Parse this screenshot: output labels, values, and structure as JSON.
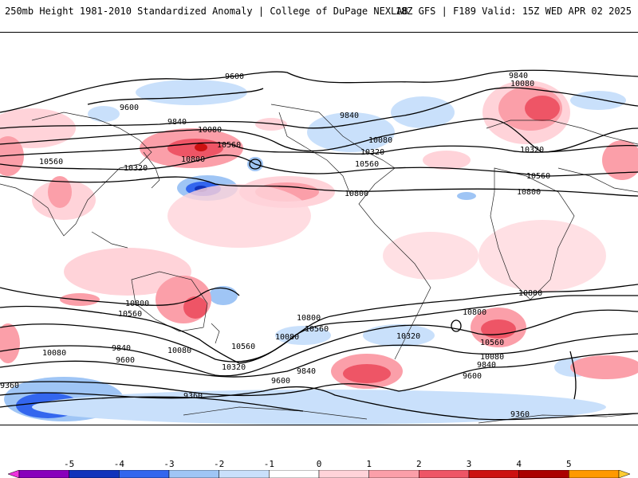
{
  "header": {
    "title": "250mb Height 1981-2010 Standardized Anomaly | College of DuPage NEXLAB",
    "run_info": "18Z GFS | F189 Valid: 15Z WED APR 02 2025"
  },
  "legend": {
    "ticks": [
      "-5",
      "-4",
      "-3",
      "-2",
      "-1",
      "0",
      "1",
      "2",
      "3",
      "4",
      "5"
    ],
    "colors": [
      "#ee33dd",
      "#8800bb",
      "#1133bb",
      "#3366ee",
      "#9fc5f5",
      "#c9e0fb",
      "#ffffff",
      "#ffd3d9",
      "#fb9fa9",
      "#ee5566",
      "#cc1111",
      "#aa0000",
      "#ff9900",
      "#ffcc33"
    ]
  },
  "contour_labels": {
    "c1": "9600",
    "c2": "9600",
    "c3": "9840",
    "c4": "10080",
    "c5": "10560",
    "c6": "10800",
    "c7": "10320",
    "c8": "10560",
    "c9": "9840",
    "c10": "10080",
    "c11": "10320",
    "c12": "10560",
    "c13": "10800",
    "c14": "9840",
    "c15": "10080",
    "c16": "10320",
    "c17": "10560",
    "c18": "10800",
    "c19": "10800",
    "c20": "10560",
    "c21": "10080",
    "c22": "9840",
    "c23": "9600",
    "c24": "10080",
    "c25": "10320",
    "c26": "10800",
    "c27": "10560",
    "c28": "9840",
    "c29": "9600",
    "c30": "10320",
    "c31": "10800",
    "c32": "10800",
    "c33": "10560",
    "c34": "10080",
    "c35": "9840",
    "c36": "9600",
    "c37": "9360",
    "c38": "9360",
    "c39": "9360",
    "c40": "10080",
    "c41": "10560"
  }
}
